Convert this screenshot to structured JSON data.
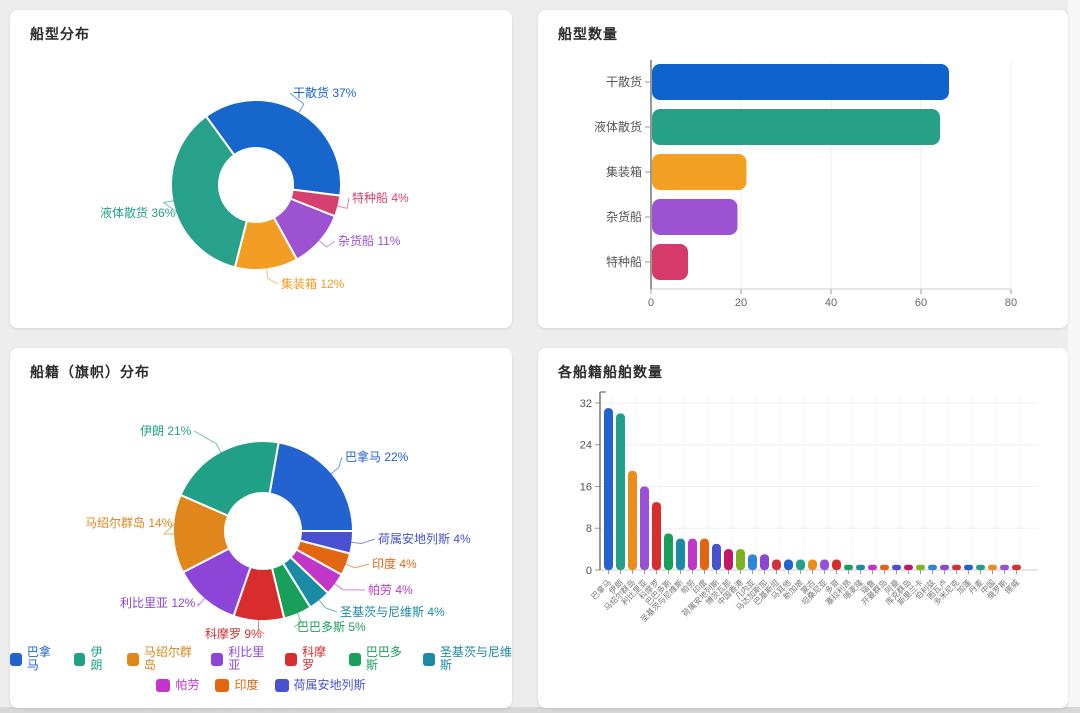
{
  "page": {
    "background_color": "#ededed",
    "card_color": "#ffffff"
  },
  "chart_data": [
    {
      "id": "ship_type_pie",
      "type": "pie",
      "title": "船型分布",
      "subtype": "donut",
      "value_suffix": "%",
      "legend_position": "none",
      "slices": [
        {
          "label": "干散货",
          "value": 37,
          "color": "#1766cb"
        },
        {
          "label": "特种船",
          "value": 4,
          "color": "#d6406e"
        },
        {
          "label": "杂货船",
          "value": 11,
          "color": "#9c52d1"
        },
        {
          "label": "集装箱",
          "value": 12,
          "color": "#f29d23"
        },
        {
          "label": "液体散货",
          "value": 36,
          "color": "#27a189"
        }
      ]
    },
    {
      "id": "ship_type_bar",
      "type": "bar",
      "orientation": "horizontal",
      "title": "船型数量",
      "categories": [
        "干散货",
        "液体散货",
        "集装箱",
        "杂货船",
        "特种船"
      ],
      "values": [
        66,
        64,
        21,
        19,
        8
      ],
      "colors": [
        "#0f63cc",
        "#26a185",
        "#f2a024",
        "#9c52d1",
        "#d63a6b"
      ],
      "xlabel": "",
      "ylabel": "",
      "xticks": [
        0,
        20,
        40,
        60,
        80
      ],
      "xlim": [
        0,
        80
      ],
      "grid": true
    },
    {
      "id": "flag_pie",
      "type": "pie",
      "title": "船籍（旗帜）分布",
      "subtype": "donut",
      "value_suffix": "%",
      "legend_position": "bottom",
      "slices": [
        {
          "label": "巴拿马",
          "value": 22,
          "color": "#2263cf"
        },
        {
          "label": "荷属安地列斯",
          "value": 4,
          "color": "#4a50d2"
        },
        {
          "label": "印度",
          "value": 4,
          "color": "#e2650f"
        },
        {
          "label": "帕劳",
          "value": 4,
          "color": "#c136c9"
        },
        {
          "label": "圣基茨与尼维斯",
          "value": 4,
          "color": "#1b8aa5"
        },
        {
          "label": "巴巴多斯",
          "value": 5,
          "color": "#18a05b"
        },
        {
          "label": "科摩罗",
          "value": 9,
          "color": "#d92c2c"
        },
        {
          "label": "利比里亚",
          "value": 12,
          "color": "#8d45d8"
        },
        {
          "label": "马绍尔群岛",
          "value": 14,
          "color": "#e0861a"
        },
        {
          "label": "伊朗",
          "value": 21,
          "color": "#21a088"
        }
      ],
      "legend_rows": [
        [
          "巴拿马",
          "伊朗",
          "马绍尔群岛",
          "利比里亚",
          "科摩罗",
          "巴巴多斯",
          "圣基茨与尼维斯"
        ],
        [
          "帕劳",
          "印度",
          "荷属安地列斯"
        ]
      ]
    },
    {
      "id": "flag_bar",
      "type": "bar",
      "orientation": "vertical",
      "title": "各船籍船舶数量",
      "categories": [
        "巴拿马",
        "伊朗",
        "马绍尔群岛",
        "利比里亚",
        "科摩罗",
        "巴巴多斯",
        "圣基茨与尼维斯",
        "帕劳",
        "印度",
        "荷属安地列斯",
        "博茨瓦那",
        "中国香港",
        "几内亚",
        "马达加斯加",
        "巴基斯坦",
        "马耳他",
        "新加坡",
        "蒙古",
        "坦桑尼亚",
        "多哥",
        "塞拉利昂",
        "喀麦隆",
        "瑙鲁",
        "开曼群岛",
        "阿曼",
        "库克群岛",
        "斯里兰卡",
        "伯利兹",
        "图瓦卢",
        "多米尼克",
        "加蓬",
        "丹麦",
        "中国",
        "俄罗斯",
        "挪威"
      ],
      "values": [
        31,
        30,
        19,
        16,
        13,
        7,
        6,
        6,
        6,
        5,
        4,
        4,
        3,
        3,
        2,
        2,
        2,
        2,
        2,
        2,
        1,
        1,
        1,
        1,
        1,
        1,
        1,
        1,
        1,
        1,
        1,
        1,
        1,
        1,
        1
      ],
      "palette": [
        "#2263cf",
        "#23a088",
        "#ec8c1e",
        "#9750d6",
        "#d92c2c",
        "#18a05b",
        "#1b8aa5",
        "#c136c9",
        "#e2650f",
        "#4a50d2",
        "#c2186b",
        "#7cb324",
        "#2e86d6",
        "#8d45d8",
        "#d4303c"
      ],
      "yticks": [
        0,
        8,
        16,
        24,
        32
      ],
      "ylim": [
        0,
        32
      ],
      "grid": true
    }
  ]
}
